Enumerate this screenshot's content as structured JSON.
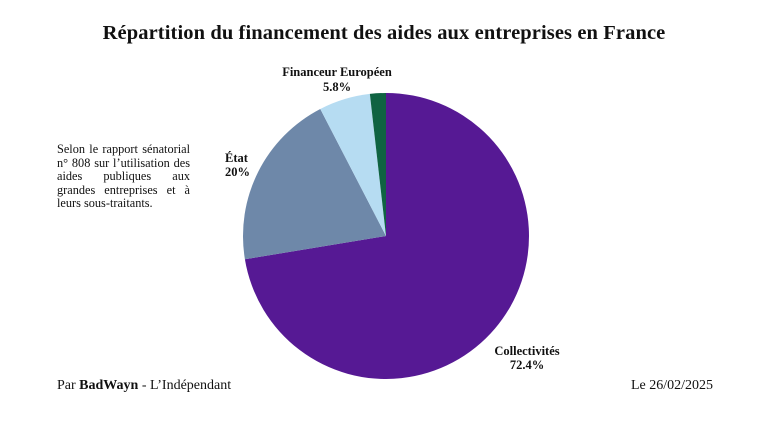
{
  "chart_data": {
    "type": "pie",
    "title": "Répartition du financement des aides aux entreprises en France",
    "slices": [
      {
        "label": "Collectivités",
        "value": 72.4,
        "value_label": "72.4%",
        "color": "#561994"
      },
      {
        "label": "État",
        "value": 20,
        "value_label": "20%",
        "color": "#6e88a9"
      },
      {
        "label": "Financeur Européen",
        "value": 5.8,
        "value_label": "5.8%",
        "color": "#b6dcf2"
      },
      {
        "label": "",
        "value": 1.8,
        "value_label": "",
        "color": "#0f6342"
      }
    ]
  },
  "note": "Selon le rapport sénatorial n° 808 sur l’utilisation des aides publiques aux grandes entreprises et à leurs sous-traitants.",
  "footer": {
    "prefix": "Par ",
    "author": "BadWayn",
    "suffix": " - L’Indépendant",
    "date": "Le 26/02/2025"
  }
}
